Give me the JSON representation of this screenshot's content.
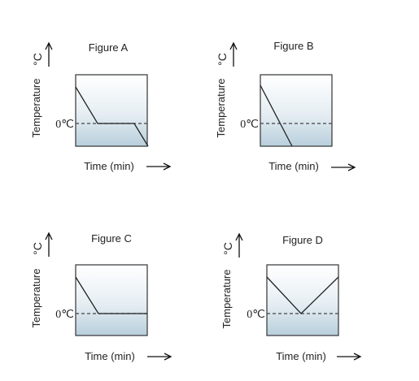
{
  "panels": [
    {
      "title": "Figure A",
      "ylabel": "Temperature",
      "yunit": "°C",
      "zero_label": "0℃",
      "xlabel": "Time (min)",
      "curve_description": "cools to 0℃, flat plateau at 0℃, then drops below 0℃"
    },
    {
      "title": "Figure B",
      "ylabel": "Temperature",
      "yunit": "°C",
      "zero_label": "0℃",
      "xlabel": "Time (min)",
      "curve_description": "cools continuously through 0℃ without plateau"
    },
    {
      "title": "Figure C",
      "ylabel": "Temperature",
      "yunit": "°C",
      "zero_label": "0℃",
      "xlabel": "Time (min)",
      "curve_description": "cools to 0℃ then stays flat at 0℃"
    },
    {
      "title": "Figure D",
      "ylabel": "Temperature",
      "yunit": "°C",
      "zero_label": "0℃",
      "xlabel": "Time (min)",
      "curve_description": "cools to 0℃ then warms back up"
    }
  ],
  "colors": {
    "below_zero_fill": "#b9cfdc",
    "line": "#222222"
  }
}
